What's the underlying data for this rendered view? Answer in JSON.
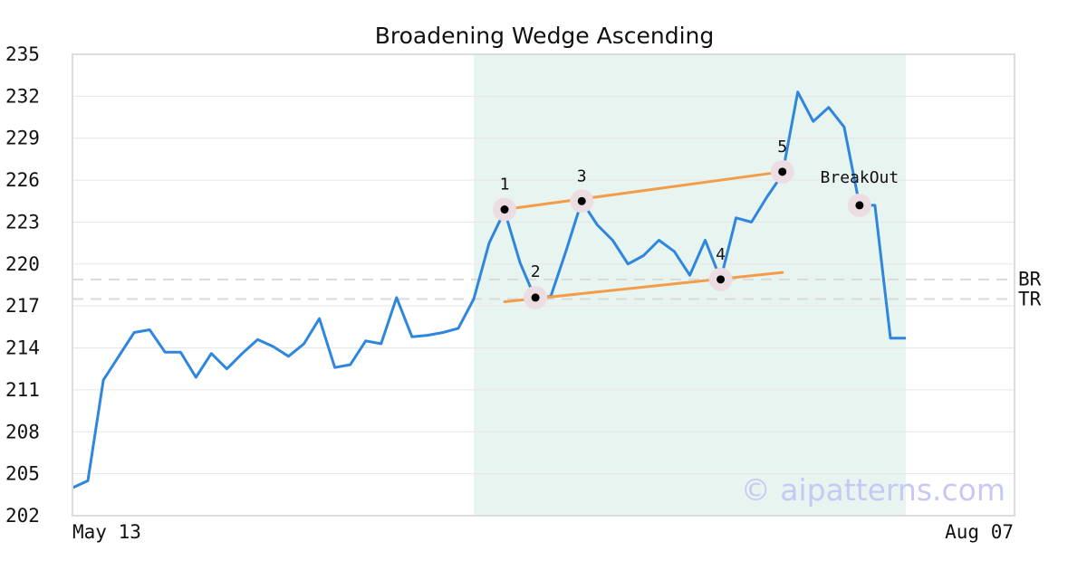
{
  "chart_data": {
    "type": "line",
    "title": "Broadening Wedge Ascending",
    "xlabel": "",
    "ylabel": "",
    "ylim": [
      202,
      235
    ],
    "yticks": [
      202,
      205,
      208,
      211,
      214,
      217,
      220,
      223,
      226,
      229,
      232,
      235
    ],
    "x_start_label": "May 13",
    "x_end_label": "Aug 07",
    "grid": true,
    "series": [
      {
        "color": "#2e86de",
        "values": [
          204.0,
          204.5,
          211.7,
          213.4,
          215.1,
          215.3,
          213.7,
          213.7,
          211.9,
          213.6,
          212.5,
          213.6,
          214.6,
          214.1,
          213.4,
          214.3,
          216.1,
          212.6,
          212.8,
          214.5,
          214.3,
          217.6,
          214.8,
          214.9,
          215.1,
          215.4,
          217.5,
          221.5,
          223.8,
          220.1,
          217.5,
          217.7,
          221.0,
          224.5,
          222.8,
          221.7,
          220.0,
          220.6,
          221.7,
          220.9,
          219.2,
          221.7,
          218.9,
          223.3,
          223.0,
          224.8,
          226.4,
          232.3,
          230.2,
          231.2,
          229.8,
          224.2,
          224.2,
          214.7,
          214.7
        ]
      }
    ],
    "highlight_region": {
      "from_index": 26,
      "to_index": 54,
      "color": "#e8f4ef"
    },
    "trendlines": [
      {
        "color": "#f39c4a",
        "from": [
          28,
          223.9
        ],
        "to": [
          46,
          226.6
        ]
      },
      {
        "color": "#f39c4a",
        "from": [
          28,
          217.3
        ],
        "to": [
          46,
          219.4
        ]
      }
    ],
    "points": [
      {
        "label": "1",
        "index": 28,
        "value": 223.9
      },
      {
        "label": "2",
        "index": 30,
        "value": 217.6
      },
      {
        "label": "3",
        "index": 33,
        "value": 224.5
      },
      {
        "label": "4",
        "index": 42,
        "value": 218.9
      },
      {
        "label": "5",
        "index": 46,
        "value": 226.6
      },
      {
        "label": "BreakOut",
        "index": 51,
        "value": 224.2
      }
    ],
    "reference_lines": [
      {
        "label": "BR",
        "value": 218.9
      },
      {
        "label": "TR",
        "value": 217.5
      }
    ],
    "watermark": "© aipatterns.com"
  }
}
